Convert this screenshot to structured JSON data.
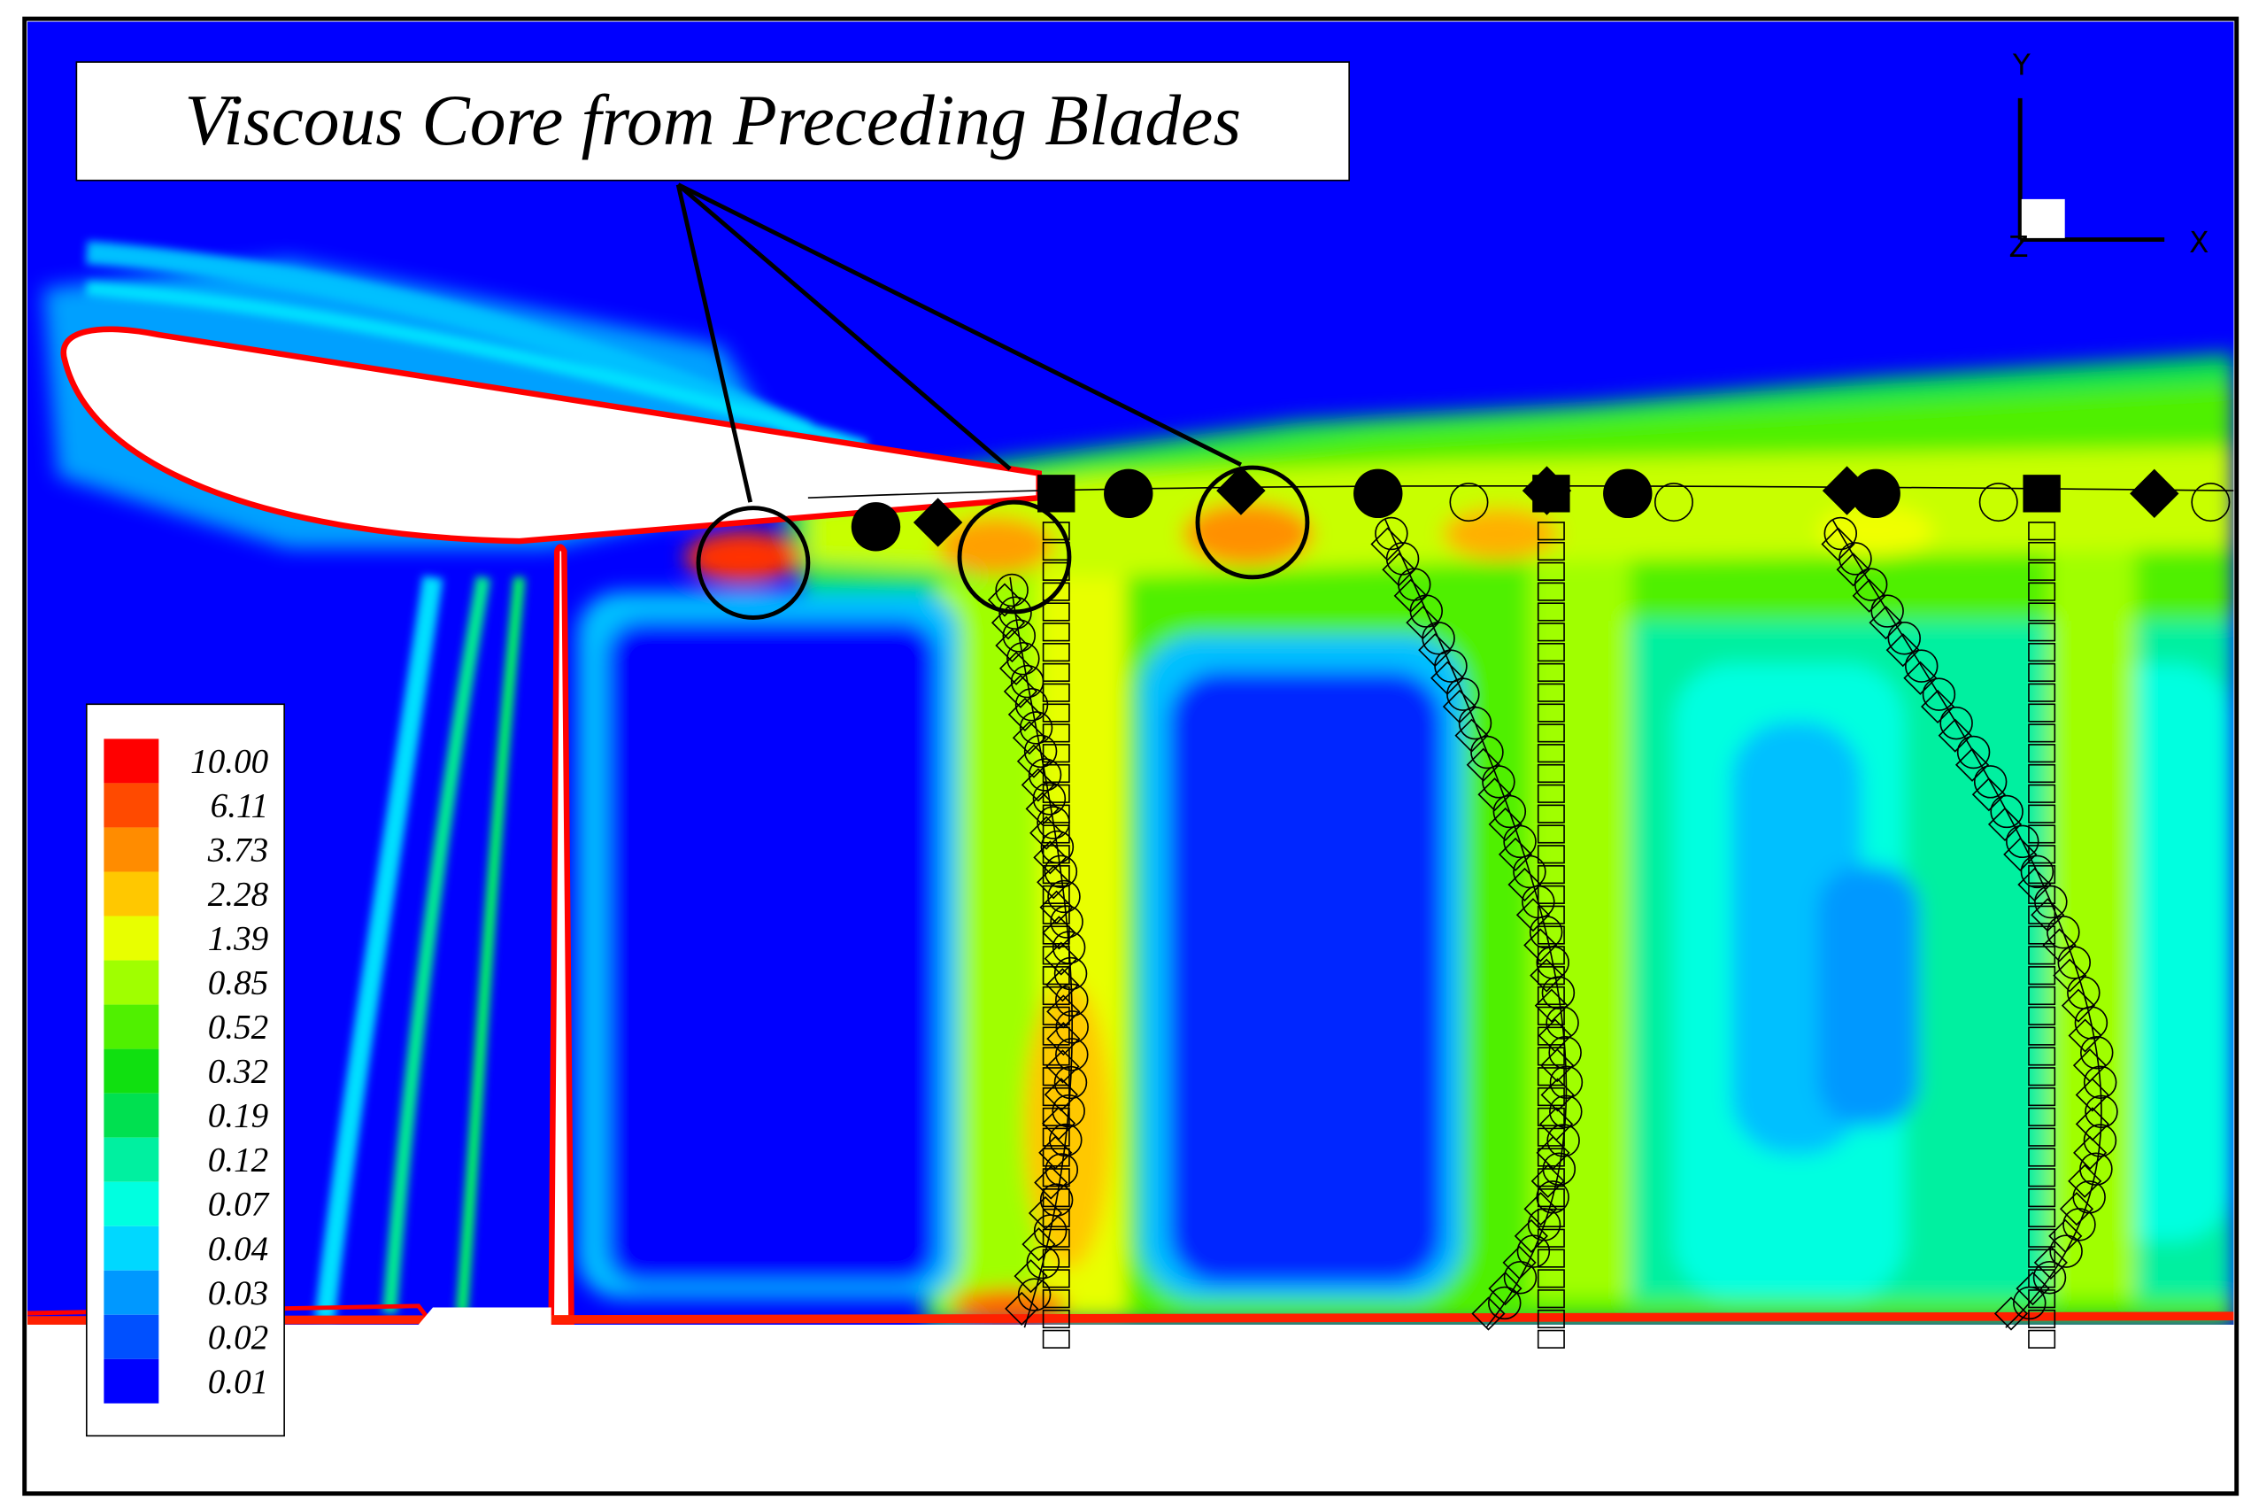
{
  "annotation": {
    "text": "Viscous Core from Preceding Blades"
  },
  "axes": {
    "x": "X",
    "y": "Y",
    "z": "Z"
  },
  "legend": {
    "levels": [
      {
        "label": "10.00",
        "color": "#ff0000"
      },
      {
        "label": "6.11",
        "color": "#ff4a00"
      },
      {
        "label": "3.73",
        "color": "#ff8c00"
      },
      {
        "label": "2.28",
        "color": "#ffc800"
      },
      {
        "label": "1.39",
        "color": "#e8ff00"
      },
      {
        "label": "0.85",
        "color": "#a0ff00"
      },
      {
        "label": "0.52",
        "color": "#50f000"
      },
      {
        "label": "0.32",
        "color": "#10e010"
      },
      {
        "label": "0.19",
        "color": "#00e050"
      },
      {
        "label": "0.12",
        "color": "#00f0a0"
      },
      {
        "label": "0.07",
        "color": "#00ffe0"
      },
      {
        "label": "0.04",
        "color": "#00d8ff"
      },
      {
        "label": "0.03",
        "color": "#0098ff"
      },
      {
        "label": "0.02",
        "color": "#0050ff"
      },
      {
        "label": "0.01",
        "color": "#0000ff"
      }
    ]
  }
}
